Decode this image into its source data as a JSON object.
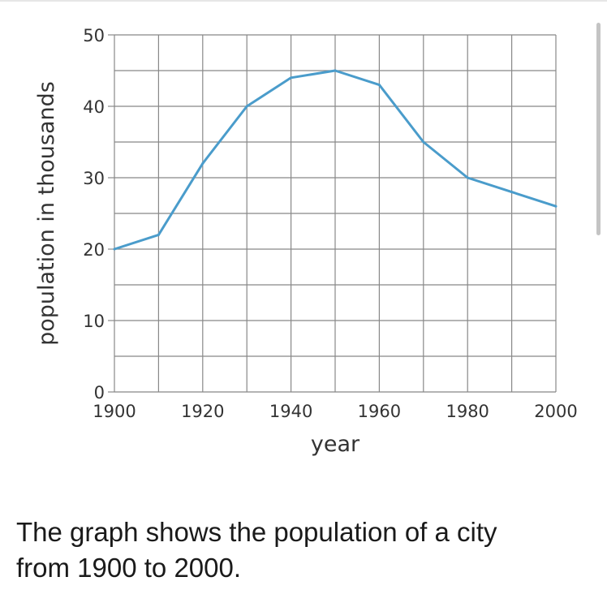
{
  "chart_data": {
    "type": "line",
    "xlabel": "year",
    "ylabel": "population in thousands",
    "xlim": [
      1900,
      2000
    ],
    "ylim": [
      0,
      50
    ],
    "x_ticks": [
      1900,
      1920,
      1940,
      1960,
      1980,
      2000
    ],
    "y_ticks": [
      0,
      10,
      20,
      30,
      40,
      50
    ],
    "grid": true,
    "series": [
      {
        "x": [
          1900,
          1910,
          1920,
          1930,
          1940,
          1950,
          1960,
          1970,
          1980,
          1990,
          2000
        ],
        "values": [
          20,
          22,
          32,
          40,
          44,
          45,
          43,
          35,
          30,
          28,
          26
        ]
      }
    ]
  },
  "colors": {
    "line": "#4a9ccb",
    "grid": "#888888",
    "text": "#333333"
  },
  "caption": {
    "line1": "The graph shows the population of a city",
    "line2": "from 1900 to 2000."
  }
}
